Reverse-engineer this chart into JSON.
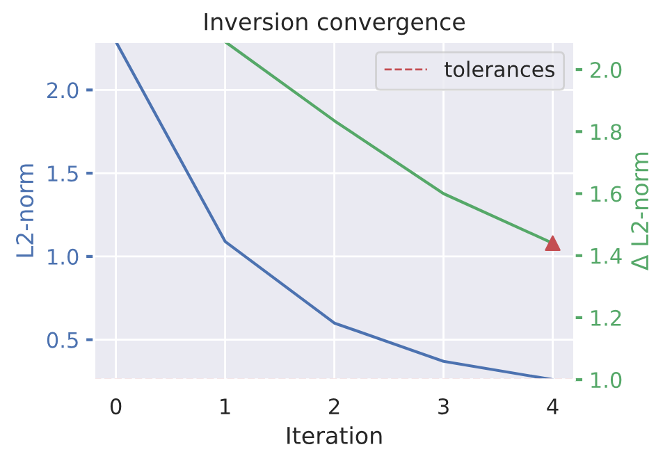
{
  "chart_data": {
    "type": "line",
    "title": "Inversion convergence",
    "xlabel": "Iteration",
    "ylabel": "L2-norm",
    "y2label": "Δ L2-norm",
    "x": [
      0,
      1,
      2,
      3,
      4
    ],
    "series": [
      {
        "color": "#4c72b0",
        "values": [
          2.29,
          1.09,
          0.6,
          0.37,
          0.26
        ]
      },
      {
        "color": "#55a868",
        "axis": "y2",
        "values": [
          null,
          2.09,
          1.835,
          1.6,
          1.44
        ]
      },
      {
        "type": "scatter",
        "color": "#c44e52",
        "axis": "y2",
        "marker": "triangle",
        "values": [
          null,
          null,
          null,
          null,
          1.44
        ]
      }
    ],
    "xlim": [
      -0.2,
      4.2
    ],
    "xticks": [
      0,
      1,
      2,
      3,
      4
    ],
    "ylim": [
      0.26,
      2.29
    ],
    "yticks": [
      0.5,
      {
        "value": 1,
        "label": "1.0"
      },
      1.5,
      {
        "value": 2,
        "label": "2.0"
      }
    ],
    "y2lim": [
      1.0,
      2.09
    ],
    "y2ticks": [
      {
        "value": 1,
        "label": "1.0"
      },
      1.2,
      1.4,
      1.6,
      1.8,
      {
        "value": 2,
        "label": "2.0"
      }
    ],
    "ref_lines": [
      {
        "axis": "y2",
        "value": 1.0,
        "label": "tolerances",
        "color": "#c44e52",
        "line_style": "dashed"
      }
    ],
    "grid": true,
    "legend": "top right"
  }
}
